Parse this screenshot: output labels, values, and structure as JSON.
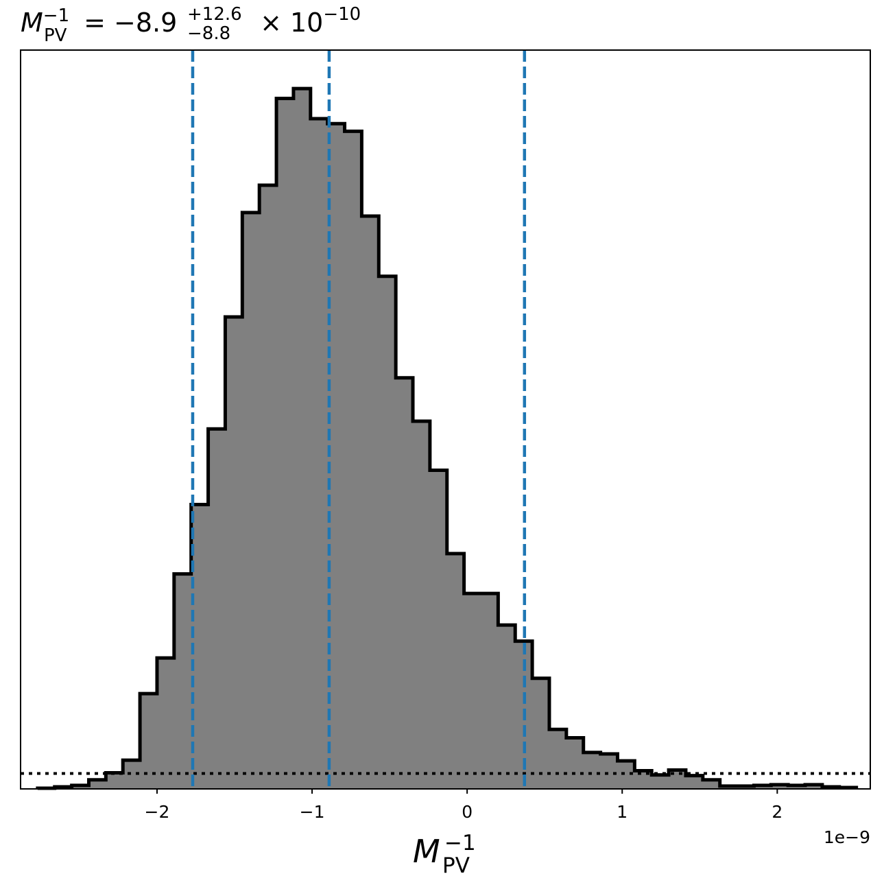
{
  "chart_data": {
    "type": "histogram",
    "title": {
      "symbol": "M",
      "sub": "PV",
      "sup": "−1",
      "equals": " = ",
      "value": "−8.9",
      "plus_err": "+12.6",
      "minus_err": "−8.8",
      "times": " × 10",
      "exponent": "−10"
    },
    "xlabel": {
      "symbol": "M",
      "sub": "PV",
      "sup": "−1"
    },
    "x_offset_label": "1e−9",
    "xlim": [
      -2.88,
      2.6
    ],
    "ylim": [
      0,
      1.055
    ],
    "xticks": [
      {
        "value": -2,
        "label": "−2"
      },
      {
        "value": -1,
        "label": "−1"
      },
      {
        "value": 0,
        "label": "0"
      },
      {
        "value": 1,
        "label": "1"
      },
      {
        "value": 2,
        "label": "2"
      }
    ],
    "bins": [
      {
        "x0": -2.77,
        "x1": -2.66,
        "h": 0.001
      },
      {
        "x0": -2.66,
        "x1": -2.55,
        "h": 0.003
      },
      {
        "x0": -2.55,
        "x1": -2.44,
        "h": 0.005
      },
      {
        "x0": -2.44,
        "x1": -2.33,
        "h": 0.013
      },
      {
        "x0": -2.33,
        "x1": -2.22,
        "h": 0.023
      },
      {
        "x0": -2.22,
        "x1": -2.11,
        "h": 0.041
      },
      {
        "x0": -2.11,
        "x1": -2.0,
        "h": 0.136
      },
      {
        "x0": -2.0,
        "x1": -1.89,
        "h": 0.187
      },
      {
        "x0": -1.89,
        "x1": -1.78,
        "h": 0.307
      },
      {
        "x0": -1.78,
        "x1": -1.67,
        "h": 0.406
      },
      {
        "x0": -1.67,
        "x1": -1.56,
        "h": 0.514
      },
      {
        "x0": -1.56,
        "x1": -1.45,
        "h": 0.674
      },
      {
        "x0": -1.45,
        "x1": -1.34,
        "h": 0.823
      },
      {
        "x0": -1.34,
        "x1": -1.23,
        "h": 0.862
      },
      {
        "x0": -1.23,
        "x1": -1.12,
        "h": 0.986
      },
      {
        "x0": -1.12,
        "x1": -1.01,
        "h": 1.0
      },
      {
        "x0": -1.01,
        "x1": -0.9,
        "h": 0.957
      },
      {
        "x0": -0.9,
        "x1": -0.79,
        "h": 0.95
      },
      {
        "x0": -0.79,
        "x1": -0.68,
        "h": 0.939
      },
      {
        "x0": -0.68,
        "x1": -0.57,
        "h": 0.818
      },
      {
        "x0": -0.57,
        "x1": -0.46,
        "h": 0.732
      },
      {
        "x0": -0.46,
        "x1": -0.35,
        "h": 0.587
      },
      {
        "x0": -0.35,
        "x1": -0.24,
        "h": 0.525
      },
      {
        "x0": -0.24,
        "x1": -0.13,
        "h": 0.455
      },
      {
        "x0": -0.13,
        "x1": -0.02,
        "h": 0.336
      },
      {
        "x0": -0.02,
        "x1": 0.09,
        "h": 0.279
      },
      {
        "x0": 0.09,
        "x1": 0.2,
        "h": 0.279
      },
      {
        "x0": 0.2,
        "x1": 0.31,
        "h": 0.234
      },
      {
        "x0": 0.31,
        "x1": 0.42,
        "h": 0.211
      },
      {
        "x0": 0.42,
        "x1": 0.53,
        "h": 0.158
      },
      {
        "x0": 0.53,
        "x1": 0.64,
        "h": 0.085
      },
      {
        "x0": 0.64,
        "x1": 0.75,
        "h": 0.073
      },
      {
        "x0": 0.75,
        "x1": 0.86,
        "h": 0.052
      },
      {
        "x0": 0.86,
        "x1": 0.97,
        "h": 0.05
      },
      {
        "x0": 0.97,
        "x1": 1.08,
        "h": 0.04
      },
      {
        "x0": 1.08,
        "x1": 1.19,
        "h": 0.026
      },
      {
        "x0": 1.19,
        "x1": 1.3,
        "h": 0.02
      },
      {
        "x0": 1.3,
        "x1": 1.41,
        "h": 0.027
      },
      {
        "x0": 1.41,
        "x1": 1.52,
        "h": 0.019
      },
      {
        "x0": 1.52,
        "x1": 1.63,
        "h": 0.013
      },
      {
        "x0": 1.63,
        "x1": 1.74,
        "h": 0.004
      },
      {
        "x0": 1.74,
        "x1": 1.85,
        "h": 0.004
      },
      {
        "x0": 1.85,
        "x1": 1.96,
        "h": 0.005
      },
      {
        "x0": 1.96,
        "x1": 2.07,
        "h": 0.006
      },
      {
        "x0": 2.07,
        "x1": 2.18,
        "h": 0.005
      },
      {
        "x0": 2.18,
        "x1": 2.29,
        "h": 0.006
      },
      {
        "x0": 2.29,
        "x1": 2.4,
        "h": 0.003
      },
      {
        "x0": 2.4,
        "x1": 2.51,
        "h": 0.002
      }
    ],
    "quantile_lines": [
      -1.77,
      -0.89,
      0.37
    ],
    "reference_level": 0.022,
    "grid": false,
    "legend": "none",
    "colors": {
      "fill": "#808080",
      "edge": "#000000",
      "quantile": "#1f77b4",
      "reference": "#000000"
    }
  }
}
